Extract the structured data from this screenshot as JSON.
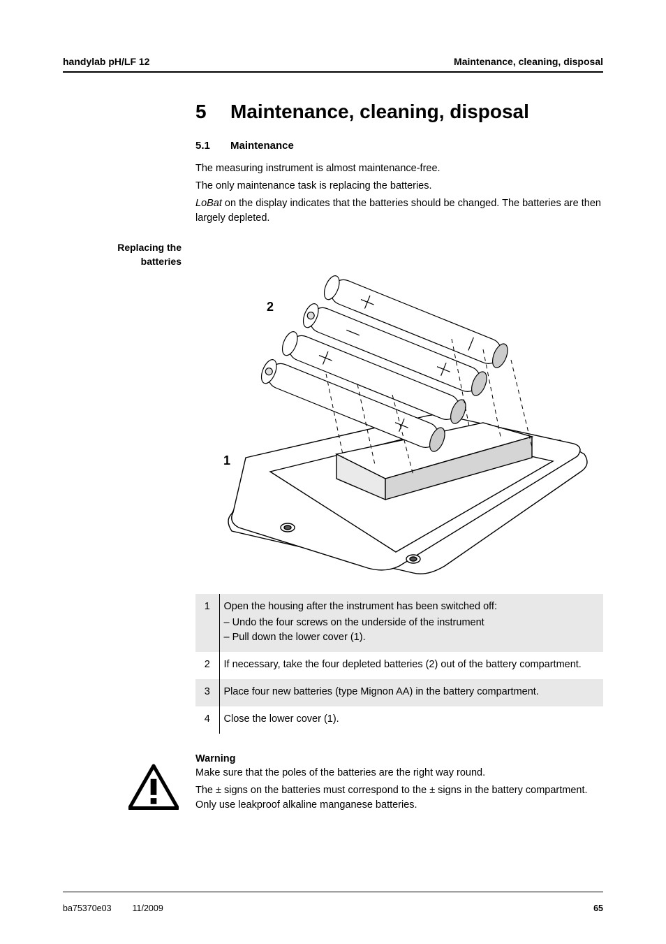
{
  "header": {
    "left": "handylab pH/LF 12",
    "right": "Maintenance, cleaning, disposal"
  },
  "chapter": {
    "number": "5",
    "title": "Maintenance, cleaning, disposal"
  },
  "section": {
    "number": "5.1",
    "title": "Maintenance"
  },
  "intro": {
    "p1": "The measuring instrument is almost maintenance-free.",
    "p2": "The only maintenance task is replacing the batteries.",
    "p3_prefix": "LoBat",
    "p3_rest": " on the display indicates that the batteries should be changed. The batteries are then largely depleted."
  },
  "side_label": {
    "line1": "Replacing the",
    "line2": "batteries"
  },
  "diagram": {
    "label_battery": "2",
    "label_cover": "1",
    "stroke": "#000000",
    "fill_light": "#ffffff",
    "fill_grey": "#d9d9d9",
    "fill_darkgrey": "#a8a8a8"
  },
  "steps": [
    {
      "n": "1",
      "shade": true,
      "text": "Open the housing after the instrument has been switched off:",
      "bullets": [
        "Undo the four screws on the underside of the instrument",
        "Pull down the lower cover (1)."
      ]
    },
    {
      "n": "2",
      "shade": false,
      "text": "If necessary, take the four depleted batteries (2) out of the battery compartment.",
      "bullets": []
    },
    {
      "n": "3",
      "shade": true,
      "text": "Place four new batteries (type Mignon AA) in the battery compartment.",
      "bullets": []
    },
    {
      "n": "4",
      "shade": false,
      "text": "Close the lower cover (1).",
      "bullets": []
    }
  ],
  "warning": {
    "heading": "Warning",
    "p1": "Make sure that the poles of the batteries are the right way round.",
    "p2": "The ± signs on the batteries must correspond to the ± signs in the battery compartment. Only use leakproof alkaline manganese batteries."
  },
  "footer": {
    "doc": "ba75370e03",
    "date": "11/2009",
    "page": "65"
  },
  "colors": {
    "text": "#000000",
    "shade_row": "#e8e8e8",
    "background": "#ffffff"
  },
  "typography": {
    "body_fontsize": 14.5,
    "chapter_fontsize": 28,
    "section_fontsize": 15,
    "header_fontsize": 14,
    "footer_fontsize": 12.5
  }
}
